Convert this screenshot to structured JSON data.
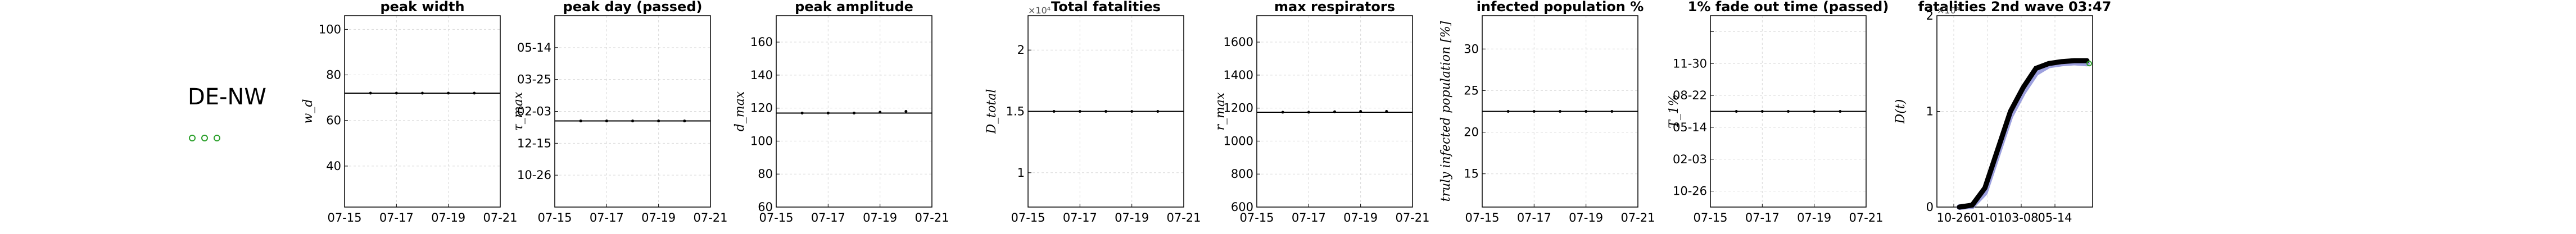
{
  "region_label": "DE-NW",
  "legend": {
    "markers": 3,
    "color": "#2ca02c"
  },
  "colors": {
    "accent_green": "#2ca02c",
    "band_blue": "#8c8fd8",
    "grid": "#d9d9d9"
  },
  "chart_data": [
    {
      "type": "line",
      "title": "peak width",
      "ylabel": "w_d",
      "x": [
        "07-15",
        "07-16",
        "07-17",
        "07-18",
        "07-19",
        "07-20",
        "07-21"
      ],
      "xticks": [
        "07-15",
        "07-17",
        "07-19",
        "07-21"
      ],
      "ylim": [
        22,
        106
      ],
      "yticks": [
        40,
        60,
        80,
        100
      ],
      "series": [
        {
          "values": [
            null,
            72,
            72,
            72,
            72,
            72,
            null
          ]
        }
      ],
      "grid": true
    },
    {
      "type": "line",
      "title": "peak day (passed)",
      "ylabel": "τ_max",
      "x": [
        "07-15",
        "07-16",
        "07-17",
        "07-18",
        "07-19",
        "07-20",
        "07-21"
      ],
      "xticks": [
        "07-15",
        "07-17",
        "07-19",
        "07-21"
      ],
      "ylim": [
        0,
        6
      ],
      "yticks": [
        1,
        2,
        3,
        4,
        5
      ],
      "ytick_labels": [
        "10-26",
        "12-15",
        "02-03",
        "03-25",
        "05-14"
      ],
      "series": [
        {
          "values": [
            null,
            2.7,
            2.7,
            2.7,
            2.7,
            2.7,
            null
          ]
        }
      ],
      "grid": true
    },
    {
      "type": "line",
      "title": "peak amplitude",
      "ylabel": "d_max",
      "x": [
        "07-15",
        "07-16",
        "07-17",
        "07-18",
        "07-19",
        "07-20",
        "07-21"
      ],
      "xticks": [
        "07-15",
        "07-17",
        "07-19",
        "07-21"
      ],
      "ylim": [
        60,
        176
      ],
      "yticks": [
        60,
        80,
        100,
        120,
        140,
        160
      ],
      "series": [
        {
          "values": [
            null,
            117,
            117,
            117,
            117.5,
            118,
            null
          ]
        }
      ],
      "grid": true
    },
    {
      "type": "line",
      "title": "Total fatalities",
      "ylabel": "D_total",
      "exponent_label": "×10⁴",
      "x": [
        "07-15",
        "07-16",
        "07-17",
        "07-18",
        "07-19",
        "07-20",
        "07-21"
      ],
      "xticks": [
        "07-15",
        "07-17",
        "07-19",
        "07-21"
      ],
      "ylim": [
        0.72,
        2.28
      ],
      "yticks": [
        1,
        1.5,
        2
      ],
      "series": [
        {
          "values": [
            null,
            1.5,
            1.5,
            1.5,
            1.5,
            1.5,
            null
          ]
        }
      ],
      "grid": true
    },
    {
      "type": "line",
      "title": "max respirators",
      "ylabel": "r_max",
      "x": [
        "07-15",
        "07-16",
        "07-17",
        "07-18",
        "07-19",
        "07-20",
        "07-21"
      ],
      "xticks": [
        "07-15",
        "07-17",
        "07-19",
        "07-21"
      ],
      "ylim": [
        600,
        1760
      ],
      "yticks": [
        600,
        800,
        1000,
        1200,
        1400,
        1600
      ],
      "series": [
        {
          "values": [
            null,
            1175,
            1175,
            1178,
            1180,
            1180,
            null
          ]
        }
      ],
      "grid": true
    },
    {
      "type": "line",
      "title": "infected population %",
      "ylabel": "truly infected population [%]",
      "x": [
        "07-15",
        "07-16",
        "07-17",
        "07-18",
        "07-19",
        "07-20",
        "07-21"
      ],
      "xticks": [
        "07-15",
        "07-17",
        "07-19",
        "07-21"
      ],
      "ylim": [
        11,
        34
      ],
      "yticks": [
        15,
        20,
        25,
        30
      ],
      "series": [
        {
          "values": [
            null,
            22.5,
            22.5,
            22.5,
            22.5,
            22.5,
            null
          ]
        }
      ],
      "grid": true
    },
    {
      "type": "line",
      "title": "1% fade out time (passed)",
      "ylabel": "T_1%",
      "x": [
        "07-15",
        "07-16",
        "07-17",
        "07-18",
        "07-19",
        "07-20",
        "07-21"
      ],
      "xticks": [
        "07-15",
        "07-17",
        "07-19",
        "07-21"
      ],
      "ylim": [
        0.5,
        6.5
      ],
      "yticks": [
        1,
        2,
        3,
        4,
        5,
        6
      ],
      "ytick_labels": [
        "10-26",
        "02-03",
        "05-14",
        "08-22",
        "11-30",
        ""
      ],
      "series": [
        {
          "values": [
            null,
            3.5,
            3.5,
            3.5,
            3.5,
            3.5,
            null
          ]
        }
      ],
      "grid": true
    },
    {
      "type": "scatter",
      "title": "fatalities 2nd wave 03:47",
      "ylabel": "D(t)",
      "exponent_label": "×10⁴",
      "xticks": [
        "10-26",
        "01-01",
        "03-08",
        "05-14"
      ],
      "xlim": [
        0,
        1
      ],
      "ylim": [
        0,
        2
      ],
      "yticks": [
        0,
        1,
        2
      ],
      "series": [
        {
          "values": [
            0,
            0.02,
            0.2,
            0.6,
            1.0,
            1.25,
            1.45,
            1.5,
            1.52,
            1.53,
            1.53
          ]
        },
        {
          "values": [
            0,
            0.01,
            0.15,
            0.55,
            0.95,
            1.2,
            1.4,
            1.48,
            1.5,
            1.51,
            1.5
          ]
        }
      ],
      "grid": true
    }
  ]
}
